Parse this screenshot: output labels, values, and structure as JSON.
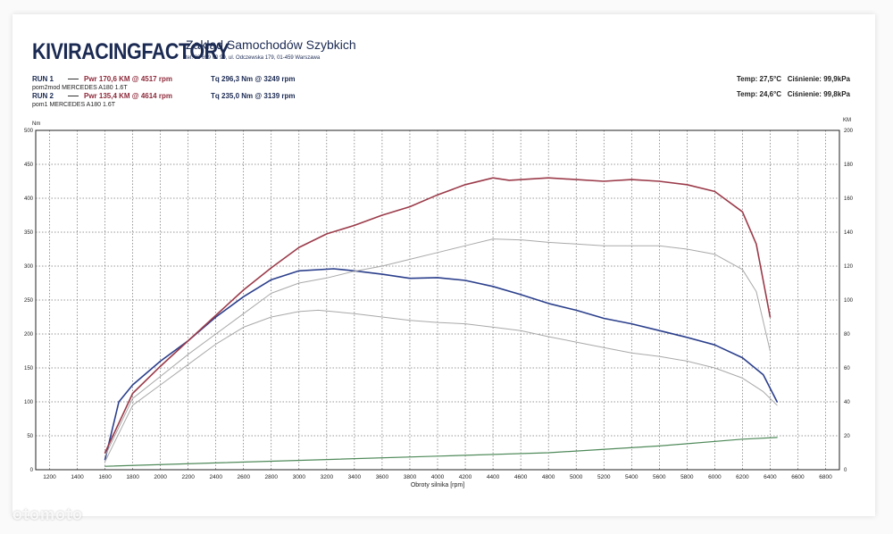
{
  "header": {
    "logo": "KIVIRACINGFACTORY",
    "company": "Zakład Samochodów Szybkich",
    "address": "tel. 22 699 00 90, ul. Odczewska 179, 01-459 Warszawa"
  },
  "runs": [
    {
      "label": "RUN 1",
      "power": "Pwr  170,6 KM @ 4517 rpm",
      "torque": "Tq  296,3 Nm @ 3249 rpm",
      "file": "pom2mod MERCEDES A180 1.6T",
      "temp": "Temp: 27,5°C",
      "pressure": "Ciśnienie: 99,9kPa"
    },
    {
      "label": "RUN 2",
      "power": "Pwr  135,4 KM @ 4614 rpm",
      "torque": "Tq  235,0 Nm @ 3139 rpm",
      "file": "pom1 MERCEDES A180 1.6T",
      "temp": "Temp: 24,6°C",
      "pressure": "Ciśnienie: 99,8kPa"
    }
  ],
  "watermark": "otomoto",
  "chart_data": {
    "type": "line",
    "xlabel": "Obroty silnika [rpm]",
    "ylabel_left": "Nm",
    "ylabel_right": "KM",
    "xlim": [
      1100,
      6900
    ],
    "ylim_left": [
      0,
      500
    ],
    "ylim_right": [
      0,
      200
    ],
    "x_ticks": [
      1200,
      1400,
      1600,
      1800,
      2000,
      2200,
      2400,
      2600,
      2800,
      3000,
      3200,
      3400,
      3600,
      3800,
      4000,
      4200,
      4400,
      4600,
      4800,
      5000,
      5200,
      5400,
      5600,
      5800,
      6000,
      6200,
      6400,
      6600,
      6800
    ],
    "y_ticks_left": [
      0,
      50,
      100,
      150,
      200,
      250,
      300,
      350,
      400,
      450,
      500
    ],
    "y_ticks_right": [
      0,
      20,
      40,
      60,
      80,
      100,
      120,
      140,
      160,
      180,
      200
    ],
    "grid": true,
    "colors": {
      "run1_torque": "#2b3f8c",
      "run1_power": "#9b3b4a",
      "run2": "#a9a9a9",
      "loss": "#4f8a5a"
    },
    "series": [
      {
        "name": "RUN 1 Tq",
        "axis": "left",
        "x": [
          1600,
          1700,
          1800,
          2000,
          2200,
          2400,
          2600,
          2800,
          3000,
          3249,
          3400,
          3600,
          3800,
          4000,
          4200,
          4400,
          4600,
          4800,
          5000,
          5200,
          5400,
          5600,
          5800,
          6000,
          6200,
          6350,
          6450
        ],
        "y": [
          15,
          100,
          125,
          160,
          190,
          225,
          255,
          280,
          293,
          296,
          293,
          288,
          282,
          283,
          279,
          270,
          258,
          245,
          235,
          223,
          215,
          205,
          195,
          184,
          165,
          140,
          100
        ]
      },
      {
        "name": "RUN 1 Pwr",
        "axis": "right",
        "x": [
          1600,
          1800,
          2000,
          2200,
          2400,
          2600,
          2800,
          3000,
          3200,
          3400,
          3600,
          3800,
          4000,
          4200,
          4400,
          4517,
          4800,
          5000,
          5200,
          5400,
          5600,
          5800,
          6000,
          6200,
          6300,
          6400
        ],
        "y": [
          10,
          45,
          61,
          76,
          91,
          106,
          119,
          131,
          139,
          144,
          150,
          155,
          162,
          168,
          172,
          170.6,
          172,
          171,
          170,
          171,
          170,
          168,
          164,
          152,
          133,
          90
        ]
      },
      {
        "name": "RUN 2 Tq",
        "axis": "left",
        "x": [
          1600,
          1800,
          2000,
          2200,
          2400,
          2600,
          2800,
          3000,
          3139,
          3400,
          3600,
          3800,
          4000,
          4200,
          4400,
          4600,
          4800,
          5000,
          5200,
          5400,
          5600,
          5800,
          6000,
          6200,
          6350,
          6450
        ],
        "y": [
          12,
          95,
          125,
          155,
          185,
          210,
          225,
          233,
          235,
          230,
          225,
          220,
          217,
          215,
          210,
          205,
          196,
          188,
          180,
          172,
          167,
          160,
          150,
          135,
          115,
          95
        ]
      },
      {
        "name": "RUN 2 Pwr",
        "axis": "right",
        "x": [
          1600,
          1800,
          2000,
          2200,
          2400,
          2600,
          2800,
          3000,
          3200,
          3400,
          3600,
          3800,
          4000,
          4200,
          4400,
          4614,
          4800,
          5000,
          5200,
          5400,
          5600,
          5800,
          6000,
          6200,
          6300,
          6400
        ],
        "y": [
          8,
          42,
          55,
          68,
          80,
          92,
          104,
          110,
          113,
          117,
          120,
          124,
          128,
          132,
          136,
          135.4,
          134,
          133,
          132,
          132,
          132,
          130,
          127,
          118,
          105,
          70
        ]
      },
      {
        "name": "Loss",
        "axis": "right",
        "x": [
          1600,
          2400,
          3200,
          4000,
          4800,
          5600,
          6200,
          6450
        ],
        "y": [
          2,
          4,
          6,
          8,
          10,
          14,
          18,
          19
        ]
      }
    ]
  }
}
